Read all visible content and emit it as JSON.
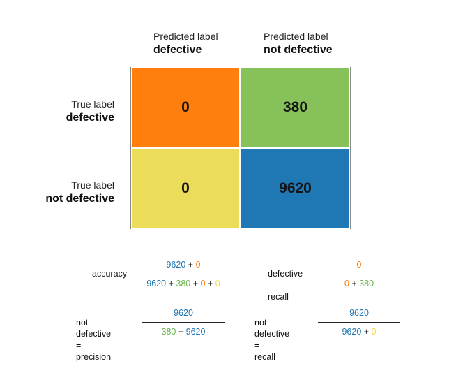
{
  "columns": [
    {
      "light": "Predicted label",
      "bold": "defective"
    },
    {
      "light": "Predicted label",
      "bold": "not defective"
    }
  ],
  "rows": [
    {
      "light": "True label",
      "bold": "defective"
    },
    {
      "light": "True label",
      "bold": "not defective"
    }
  ],
  "cells": {
    "tp": "0",
    "fn": "380",
    "fp": "0",
    "tn": "9620"
  },
  "colors": {
    "tp": "#ff7f0e",
    "fn": "#86c15a",
    "fp": "#ebdd5a",
    "tn": "#1f77b4"
  },
  "formulas": {
    "accuracy": {
      "label": "accuracy =",
      "num": [
        "9620",
        "+",
        "0"
      ],
      "den": [
        "9620",
        "+",
        "380",
        "+",
        "0",
        "+",
        "0"
      ]
    },
    "defective_recall": {
      "label1": "defective =",
      "label2": "recall",
      "num": [
        "0"
      ],
      "den": [
        "0",
        "+",
        "380"
      ]
    },
    "nd_precision": {
      "label1": "not defective =",
      "label2": "precision",
      "num": [
        "9620"
      ],
      "den": [
        "380",
        "+",
        "9620"
      ]
    },
    "nd_recall": {
      "label1": "not defective =",
      "label2": "recall",
      "num": [
        "9620"
      ],
      "den": [
        "9620",
        "+",
        "0"
      ]
    }
  }
}
